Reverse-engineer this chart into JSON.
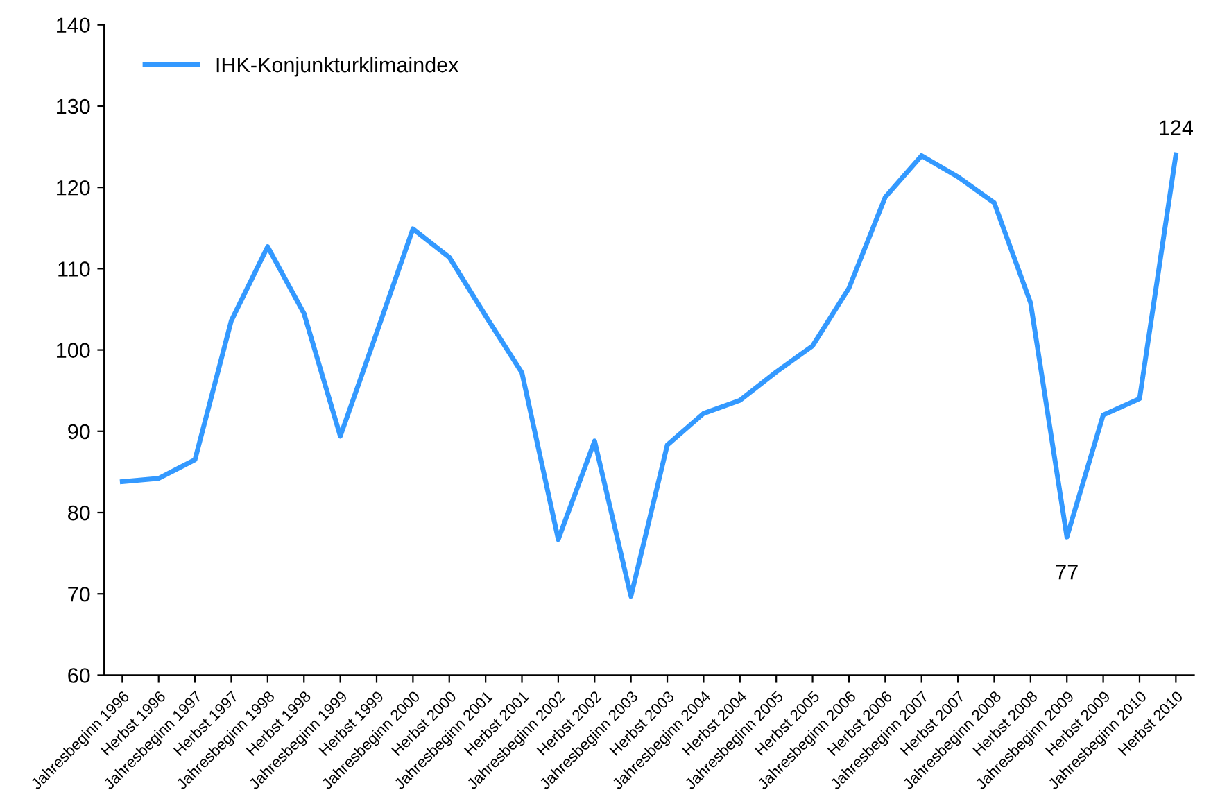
{
  "chart_data": {
    "type": "line",
    "categories": [
      "Jahresbeginn 1996",
      "Herbst 1996",
      "Jahresbeginn 1997",
      "Herbst 1997",
      "Jahresbeginn 1998",
      "Herbst 1998",
      "Jahresbeginn 1999",
      "Herbst 1999",
      "Jahresbeginn 2000",
      "Herbst 2000",
      "Jahresbeginn 2001",
      "Herbst 2001",
      "Jahresbeginn 2002",
      "Herbst 2002",
      "Jahresbeginn 2003",
      "Herbst 2003",
      "Jahresbeginn 2004",
      "Herbst 2004",
      "Jahresbeginn 2005",
      "Herbst 2005",
      "Jahresbeginn 2006",
      "Herbst 2006",
      "Jahresbeginn 2007",
      "Herbst 2007",
      "Jahresbeginn 2008",
      "Herbst 2008",
      "Jahresbeginn 2009",
      "Herbst 2009",
      "Jahresbeginn 2010",
      "Herbst 2010"
    ],
    "series": [
      {
        "name": "IHK-Konjunkturklimaindex",
        "color": "#3399ff",
        "values": [
          83.8,
          84.2,
          86.5,
          103.6,
          112.7,
          104.5,
          89.4,
          102.1,
          114.9,
          111.4,
          104.2,
          97.2,
          76.7,
          88.8,
          69.7,
          88.3,
          92.2,
          93.8,
          97.3,
          100.5,
          107.6,
          118.8,
          123.9,
          121.3,
          118.1,
          105.8,
          77,
          92.0,
          94.0,
          124
        ],
        "value_labels": [
          null,
          null,
          null,
          null,
          null,
          null,
          null,
          null,
          null,
          null,
          null,
          null,
          null,
          null,
          null,
          null,
          null,
          null,
          null,
          null,
          null,
          null,
          null,
          null,
          null,
          null,
          "77",
          null,
          null,
          "124"
        ]
      }
    ],
    "ylim": [
      60,
      140
    ],
    "yticks": [
      60,
      70,
      80,
      90,
      100,
      110,
      120,
      130,
      140
    ],
    "grid": false,
    "legend": "top left",
    "marker": "none",
    "line_style": "solid"
  }
}
